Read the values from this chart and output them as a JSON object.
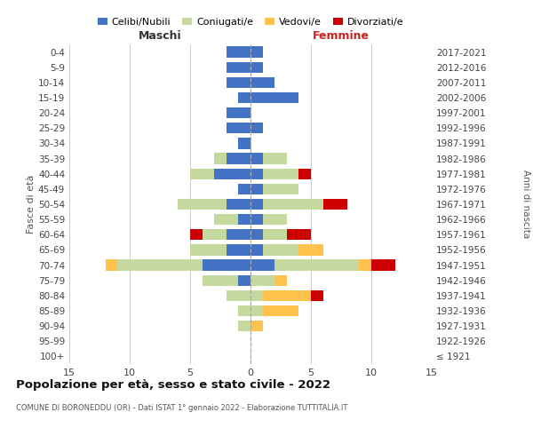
{
  "age_groups": [
    "100+",
    "95-99",
    "90-94",
    "85-89",
    "80-84",
    "75-79",
    "70-74",
    "65-69",
    "60-64",
    "55-59",
    "50-54",
    "45-49",
    "40-44",
    "35-39",
    "30-34",
    "25-29",
    "20-24",
    "15-19",
    "10-14",
    "5-9",
    "0-4"
  ],
  "birth_years": [
    "≤ 1921",
    "1922-1926",
    "1927-1931",
    "1932-1936",
    "1937-1941",
    "1942-1946",
    "1947-1951",
    "1952-1956",
    "1957-1961",
    "1962-1966",
    "1967-1971",
    "1972-1976",
    "1977-1981",
    "1982-1986",
    "1987-1991",
    "1992-1996",
    "1997-2001",
    "2002-2006",
    "2007-2011",
    "2012-2016",
    "2017-2021"
  ],
  "maschi": {
    "celibi": [
      0,
      0,
      0,
      0,
      0,
      1,
      4,
      2,
      2,
      1,
      2,
      1,
      3,
      2,
      1,
      2,
      2,
      1,
      2,
      2,
      2
    ],
    "coniugati": [
      0,
      0,
      1,
      1,
      2,
      3,
      7,
      3,
      2,
      2,
      4,
      0,
      2,
      1,
      0,
      0,
      0,
      0,
      0,
      0,
      0
    ],
    "vedovi": [
      0,
      0,
      0,
      0,
      0,
      0,
      1,
      0,
      0,
      0,
      0,
      0,
      0,
      0,
      0,
      0,
      0,
      0,
      0,
      0,
      0
    ],
    "divorziati": [
      0,
      0,
      0,
      0,
      0,
      0,
      0,
      0,
      1,
      0,
      0,
      0,
      0,
      0,
      0,
      0,
      0,
      0,
      0,
      0,
      0
    ]
  },
  "femmine": {
    "nubili": [
      0,
      0,
      0,
      0,
      0,
      0,
      2,
      1,
      1,
      1,
      1,
      1,
      1,
      1,
      0,
      1,
      0,
      4,
      2,
      1,
      1
    ],
    "coniugate": [
      0,
      0,
      0,
      1,
      1,
      2,
      7,
      3,
      2,
      2,
      5,
      3,
      3,
      2,
      0,
      0,
      0,
      0,
      0,
      0,
      0
    ],
    "vedove": [
      0,
      0,
      1,
      3,
      4,
      1,
      1,
      2,
      0,
      0,
      0,
      0,
      0,
      0,
      0,
      0,
      0,
      0,
      0,
      0,
      0
    ],
    "divorziate": [
      0,
      0,
      0,
      0,
      1,
      0,
      2,
      0,
      2,
      0,
      2,
      0,
      1,
      0,
      0,
      0,
      0,
      0,
      0,
      0,
      0
    ]
  },
  "colors": {
    "celibi_nubili": "#4472c4",
    "coniugati": "#c5d89d",
    "vedovi": "#ffc34d",
    "divorziati": "#cc0000"
  },
  "xlim": 15,
  "title": "Popolazione per età, sesso e stato civile - 2022",
  "subtitle": "COMUNE DI BORONEDDU (OR) - Dati ISTAT 1° gennaio 2022 - Elaborazione TUTTITALIA.IT",
  "ylabel_left": "Fasce di età",
  "ylabel_right": "Anni di nascita",
  "xlabel_maschi": "Maschi",
  "xlabel_femmine": "Femmine",
  "bg_color": "#ffffff",
  "grid_color": "#cccccc",
  "legend_labels": [
    "Celibi/Nubili",
    "Coniugati/e",
    "Vedovi/e",
    "Divorziati/e"
  ]
}
